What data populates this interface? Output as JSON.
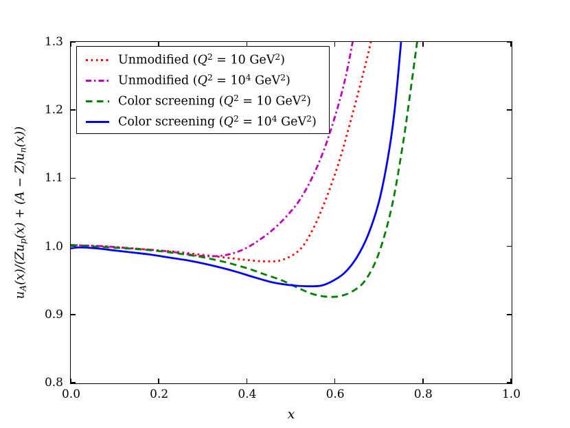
{
  "axes": {
    "xlabel": "x",
    "ylabel": "uA(x)/(Zup(x) + (A − Z)un(x))",
    "ylabel_parts": [
      {
        "t": "u"
      },
      {
        "t": "A"
      },
      {
        "t": "(x)/(Zu"
      },
      {
        "t": "p"
      },
      {
        "t": "(x) + (A − Z)u"
      },
      {
        "t": "n"
      },
      {
        "t": "(x))"
      }
    ],
    "xticks": [
      {
        "v": 0.0,
        "label": "0.0"
      },
      {
        "v": 0.2,
        "label": "0.2"
      },
      {
        "v": 0.4,
        "label": "0.4"
      },
      {
        "v": 0.6,
        "label": "0.6"
      },
      {
        "v": 0.8,
        "label": "0.8"
      },
      {
        "v": 1.0,
        "label": "1.0"
      }
    ],
    "yticks": [
      {
        "v": 1.3,
        "label": "1.3"
      },
      {
        "v": 1.2,
        "label": "1.2"
      },
      {
        "v": 1.1,
        "label": "1.1"
      },
      {
        "v": 1.0,
        "label": "1.0"
      },
      {
        "v": 0.9,
        "label": "0.9"
      },
      {
        "v": 0.8,
        "label": "0.8"
      }
    ]
  },
  "legend": {
    "items": [
      {
        "style": "dotted",
        "parts": [
          "Unmodified (",
          "Q",
          "2",
          " = 10",
          "",
          " GeV",
          "2",
          ")"
        ]
      },
      {
        "style": "dashdot",
        "parts": [
          "Unmodified (",
          "Q",
          "2",
          " = 10",
          "4",
          " GeV",
          "2",
          ")"
        ]
      },
      {
        "style": "dashed",
        "parts": [
          "Color screening (",
          "Q",
          "2",
          " = 10",
          "",
          " GeV",
          "2",
          ")"
        ]
      },
      {
        "style": "solid",
        "parts": [
          "Color screening (",
          "Q",
          "2",
          " = 10",
          "4",
          " GeV",
          "2",
          ")"
        ]
      }
    ]
  },
  "chart_data": {
    "type": "line",
    "title": "",
    "xlabel": "x",
    "ylabel": "u_A(x)/(Zu_p(x) + (A − Z)u_n(x))",
    "xlim": [
      0.0,
      1.0
    ],
    "ylim": [
      0.8,
      1.3
    ],
    "grid": false,
    "legend_position": "upper left",
    "series": [
      {
        "name": "Unmodified (Q² = 10 GeV²)",
        "color": "#ff0000",
        "style": "dotted",
        "x": [
          0.0,
          0.04,
          0.08,
          0.12,
          0.16,
          0.2,
          0.24,
          0.28,
          0.32,
          0.36,
          0.4,
          0.44,
          0.48,
          0.52,
          0.55,
          0.58,
          0.61,
          0.635,
          0.66,
          0.68,
          0.697,
          0.71
        ],
        "y": [
          1.002,
          1.001,
          1.0,
          0.998,
          0.996,
          0.994,
          0.992,
          0.989,
          0.986,
          0.983,
          0.98,
          0.978,
          0.98,
          0.995,
          1.025,
          1.07,
          1.125,
          1.182,
          1.243,
          1.295,
          1.35,
          1.4
        ]
      },
      {
        "name": "Unmodified (Q² = 10⁴ GeV²)",
        "color": "#bf00bf",
        "style": "dashdot",
        "x": [
          0.0,
          0.04,
          0.08,
          0.12,
          0.16,
          0.2,
          0.24,
          0.28,
          0.31,
          0.34,
          0.37,
          0.4,
          0.43,
          0.46,
          0.49,
          0.52,
          0.55,
          0.58,
          0.61,
          0.63,
          0.648,
          0.66
        ],
        "y": [
          1.002,
          1.001,
          1.0,
          0.998,
          0.996,
          0.994,
          0.991,
          0.987,
          0.9855,
          0.986,
          0.99,
          0.998,
          1.01,
          1.025,
          1.044,
          1.068,
          1.103,
          1.15,
          1.212,
          1.265,
          1.33,
          1.39
        ]
      },
      {
        "name": "Color screening (Q² = 10 GeV²)",
        "color": "#008000",
        "style": "dashed",
        "x": [
          0.0,
          0.05,
          0.1,
          0.15,
          0.2,
          0.25,
          0.3,
          0.35,
          0.4,
          0.44,
          0.48,
          0.52,
          0.55,
          0.58,
          0.61,
          0.64,
          0.67,
          0.7,
          0.73,
          0.755,
          0.775,
          0.793,
          0.8
        ],
        "y": [
          1.002,
          1.0,
          0.998,
          0.996,
          0.993,
          0.989,
          0.984,
          0.977,
          0.968,
          0.959,
          0.95,
          0.938,
          0.93,
          0.9262,
          0.9268,
          0.934,
          0.951,
          0.99,
          1.06,
          1.152,
          1.243,
          1.33,
          1.37
        ]
      },
      {
        "name": "Color screening (Q² = 10⁴ GeV²)",
        "color": "#0000ff",
        "style": "solid",
        "x": [
          0.0,
          0.02,
          0.06,
          0.1,
          0.14,
          0.18,
          0.22,
          0.26,
          0.3,
          0.34,
          0.38,
          0.42,
          0.46,
          0.5,
          0.535,
          0.57,
          0.6,
          0.625,
          0.65,
          0.675,
          0.7,
          0.72,
          0.735,
          0.75,
          0.758
        ],
        "y": [
          0.997,
          0.9985,
          0.997,
          0.994,
          0.991,
          0.988,
          0.984,
          0.98,
          0.975,
          0.969,
          0.962,
          0.954,
          0.947,
          0.943,
          0.9415,
          0.9425,
          0.951,
          0.963,
          0.984,
          1.016,
          1.065,
          1.128,
          1.195,
          1.298,
          1.37
        ]
      }
    ]
  }
}
